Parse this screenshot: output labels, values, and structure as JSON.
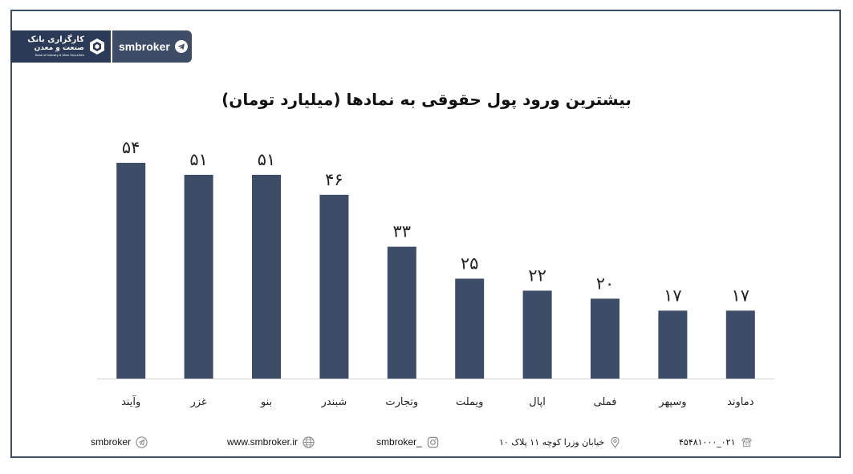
{
  "brand": {
    "logo_line1": "کارگزاری بانک",
    "logo_line2": "صنعت و معدن",
    "logo_line3": "Bank of Industry & Mine Securities",
    "handle": "smbroker",
    "telegram_icon": "telegram-icon",
    "logo_icon": "cube-logo-icon"
  },
  "chart_data": {
    "type": "bar",
    "title": "بیشترین ورود پول حقوقی به نمادها (میلیارد تومان)",
    "categories": [
      "وآیند",
      "غزر",
      "بنو",
      "شبندر",
      "وتجارت",
      "ویملت",
      "اپال",
      "فملی",
      "وسپهر",
      "دماوند"
    ],
    "values": [
      54,
      51,
      51,
      46,
      33,
      25,
      22,
      20,
      17,
      17
    ],
    "value_labels": [
      "۵۴",
      "۵۱",
      "۵۱",
      "۴۶",
      "۳۳",
      "۲۵",
      "۲۲",
      "۲۰",
      "۱۷",
      "۱۷"
    ],
    "bar_color": "#3d4c67",
    "ylim": [
      0,
      54
    ],
    "grid": false
  },
  "footer": {
    "telegram": "smbroker",
    "website": "www.smbroker.ir",
    "instagram": "smbroker_",
    "address": "خیابان وزرا کوچه ۱۱ پلاک ۱۰",
    "phone": "۰۲۱_۴۵۴۸۱۰۰۰"
  },
  "colors": {
    "frame": "#3d4c67",
    "bar": "#3d4c67",
    "footer_icon": "#8a8a8a"
  }
}
